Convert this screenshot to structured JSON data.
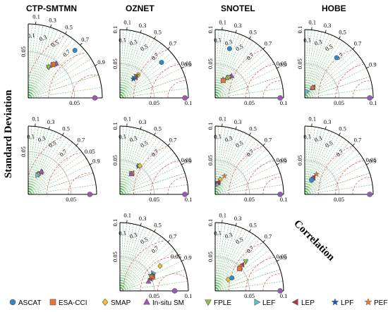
{
  "labels": {
    "col_titles": [
      "CTP-SMTMN",
      "OZNET",
      "SNOTEL",
      "HOBE"
    ],
    "y_axis": "Standard Deviation",
    "correlation": "Correlation"
  },
  "colors": {
    "ref_point": "#9b59b6",
    "grid_green": "#4caf50",
    "arc_red": "#d9534f",
    "std_grey": "#9e9e9e"
  },
  "legend": [
    {
      "name": "ASCAT",
      "marker": "circle",
      "color": "#2a8ccb"
    },
    {
      "name": "ESA-CCI",
      "marker": "square",
      "color": "#e8743b"
    },
    {
      "name": "SMAP",
      "marker": "diamond",
      "color": "#f2c12e"
    },
    {
      "name": "In-situ SM",
      "marker": "triangle-up",
      "color": "#9b59b6"
    },
    {
      "name": "FPLE",
      "marker": "triangle-down",
      "color": "#8bc34a"
    },
    {
      "name": "LEF",
      "marker": "triangle-right",
      "color": "#5bc0de"
    },
    {
      "name": "LEP",
      "marker": "triangle-left",
      "color": "#b5334f"
    },
    {
      "name": "LPF",
      "marker": "star",
      "color": "#1f5fa8"
    },
    {
      "name": "PEF",
      "marker": "star",
      "color": "#e8743b"
    }
  ],
  "chart_data": {
    "type": "scatter",
    "subtype": "taylor-diagram",
    "correlation_ticks": [
      0.1,
      0.3,
      0.5,
      0.7,
      0.9
    ],
    "panels": [
      {
        "id": "r1c1",
        "title": "CTP-SMTMN",
        "std_max": 0.08,
        "std_ticks": [
          0.05
        ],
        "rms_ticks": [],
        "ref_std": 0.072,
        "points": [
          {
            "series": "ASCAT",
            "corr": 0.7,
            "std": 0.072
          },
          {
            "series": "SMAP",
            "corr": 0.55,
            "std": 0.04
          },
          {
            "series": "FPLE",
            "corr": 0.55,
            "std": 0.04
          },
          {
            "series": "LEF",
            "corr": 0.6,
            "std": 0.044
          },
          {
            "series": "ESA-CCI",
            "corr": 0.6,
            "std": 0.045
          },
          {
            "series": "LEP",
            "corr": 0.62,
            "std": 0.047
          },
          {
            "series": "In-situ SM",
            "corr": 0.63,
            "std": 0.048
          },
          {
            "series": "PEF",
            "corr": 0.6,
            "std": 0.046
          }
        ]
      },
      {
        "id": "r1c2",
        "title": "OZNET",
        "std_max": 0.1,
        "std_ticks": [
          0.05,
          0.1
        ],
        "rms_ticks": [
          0.05
        ],
        "ref_std": 0.095,
        "points": [
          {
            "series": "ASCAT",
            "corr": 0.76,
            "std": 0.08
          },
          {
            "series": "SMAP",
            "corr": 0.62,
            "std": 0.043
          },
          {
            "series": "FPLE",
            "corr": 0.6,
            "std": 0.04
          },
          {
            "series": "LEP",
            "corr": 0.6,
            "std": 0.038
          },
          {
            "series": "In-situ SM",
            "corr": 0.6,
            "std": 0.037
          },
          {
            "series": "LEF",
            "corr": 0.58,
            "std": 0.035
          },
          {
            "series": "LPF",
            "corr": 0.58,
            "std": 0.034
          }
        ]
      },
      {
        "id": "r1c3",
        "title": "SNOTEL",
        "std_max": 0.1,
        "std_ticks": [
          0.05,
          0.1
        ],
        "rms_ticks": [
          0.05
        ],
        "ref_std": 0.095,
        "points": [
          {
            "series": "ASCAT",
            "corr": 0.28,
            "std": 0.075
          },
          {
            "series": "SMAP",
            "corr": 0.52,
            "std": 0.035
          },
          {
            "series": "In-situ SM",
            "corr": 0.6,
            "std": 0.04
          },
          {
            "series": "LEP",
            "corr": 0.55,
            "std": 0.037
          },
          {
            "series": "FPLE",
            "corr": 0.55,
            "std": 0.036
          },
          {
            "series": "LEF",
            "corr": 0.45,
            "std": 0.03
          },
          {
            "series": "ESA-CCI",
            "corr": 0.42,
            "std": 0.028
          }
        ]
      },
      {
        "id": "r1c4",
        "title": "HOBE",
        "std_max": 0.1,
        "std_ticks": [
          0.05,
          0.1
        ],
        "rms_ticks": [],
        "ref_std": 0.095,
        "points": [
          {
            "series": "ASCAT",
            "corr": 0.62,
            "std": 0.075
          },
          {
            "series": "LEP",
            "corr": 0.62,
            "std": 0.02
          },
          {
            "series": "In-situ SM",
            "corr": 0.6,
            "std": 0.018
          },
          {
            "series": "PEF",
            "corr": 0.62,
            "std": 0.019
          },
          {
            "series": "LEF",
            "corr": 0.3,
            "std": 0.01
          }
        ]
      },
      {
        "id": "r2c1",
        "title": "",
        "std_max": 0.08,
        "std_ticks": [
          0.05
        ],
        "rms_ticks": [
          0.05
        ],
        "ref_std": 0.072,
        "points": [
          {
            "series": "ASCAT",
            "corr": 0.45,
            "std": 0.027
          },
          {
            "series": "SMAP",
            "corr": 0.46,
            "std": 0.026
          },
          {
            "series": "LEP",
            "corr": 0.5,
            "std": 0.03
          },
          {
            "series": "In-situ SM",
            "corr": 0.5,
            "std": 0.031
          },
          {
            "series": "LEF",
            "corr": 0.44,
            "std": 0.025
          }
        ]
      },
      {
        "id": "r2c2",
        "title": "",
        "std_max": 0.1,
        "std_ticks": [
          0.05,
          0.1
        ],
        "rms_ticks": [
          0.05
        ],
        "ref_std": 0.095,
        "points": [
          {
            "series": "LEF",
            "corr": 0.55,
            "std": 0.05
          },
          {
            "series": "LPF",
            "corr": 0.55,
            "std": 0.049
          },
          {
            "series": "SMAP",
            "corr": 0.57,
            "std": 0.051
          },
          {
            "series": "LEP",
            "corr": 0.5,
            "std": 0.036
          },
          {
            "series": "ESA-CCI",
            "corr": 0.49,
            "std": 0.035
          },
          {
            "series": "In-situ SM",
            "corr": 0.49,
            "std": 0.034
          }
        ]
      },
      {
        "id": "r2c3",
        "title": "",
        "std_max": 0.1,
        "std_ticks": [
          0.05,
          0.1
        ],
        "rms_ticks": [
          0.05
        ],
        "ref_std": 0.095,
        "points": [
          {
            "series": "PEF",
            "corr": 0.45,
            "std": 0.03
          },
          {
            "series": "SMAP",
            "corr": 0.32,
            "std": 0.023
          },
          {
            "series": "ASCAT",
            "corr": 0.25,
            "std": 0.017
          },
          {
            "series": "LEF",
            "corr": 0.24,
            "std": 0.016
          },
          {
            "series": "LEP",
            "corr": 0.25,
            "std": 0.018
          }
        ]
      },
      {
        "id": "r2c4",
        "title": "",
        "std_max": 0.1,
        "std_ticks": [
          0.05
        ],
        "rms_ticks": [
          0.05
        ],
        "ref_std": 0.095,
        "points": [
          {
            "series": "PEF",
            "corr": 0.5,
            "std": 0.034
          },
          {
            "series": "LEP",
            "corr": 0.45,
            "std": 0.028
          },
          {
            "series": "In-situ SM",
            "corr": 0.45,
            "std": 0.026
          },
          {
            "series": "LPF",
            "corr": 0.43,
            "std": 0.024
          },
          {
            "series": "ASCAT",
            "corr": 0.43,
            "std": 0.023
          }
        ]
      },
      {
        "id": "r3c2",
        "title": "",
        "std_max": 0.1,
        "std_ticks": [
          0.05,
          0.1
        ],
        "rms_ticks": [
          0.05
        ],
        "ref_std": 0.08,
        "points": [
          {
            "series": "SMAP",
            "corr": 0.85,
            "std": 0.069
          },
          {
            "series": "In-situ SM",
            "corr": 0.95,
            "std": 0.044
          },
          {
            "series": "FPLE",
            "corr": 0.9,
            "std": 0.05
          },
          {
            "series": "LEF",
            "corr": 0.88,
            "std": 0.055
          },
          {
            "series": "ESA-CCI",
            "corr": 0.92,
            "std": 0.052
          },
          {
            "series": "LEP",
            "corr": 0.93,
            "std": 0.048
          },
          {
            "series": "LPF",
            "corr": 0.9,
            "std": 0.053
          },
          {
            "series": "PEF",
            "corr": 0.91,
            "std": 0.051
          }
        ]
      },
      {
        "id": "r3c3",
        "title": "",
        "std_max": 0.1,
        "std_ticks": [
          0.05,
          0.1
        ],
        "rms_ticks": [
          0.05
        ],
        "ref_std": 0.095,
        "points": [
          {
            "series": "SMAP",
            "corr": 0.75,
            "std": 0.025
          },
          {
            "series": "FPLE",
            "corr": 0.72,
            "std": 0.062
          },
          {
            "series": "LEP",
            "corr": 0.72,
            "std": 0.055
          },
          {
            "series": "In-situ SM",
            "corr": 0.73,
            "std": 0.05
          },
          {
            "series": "PEF",
            "corr": 0.72,
            "std": 0.052
          },
          {
            "series": "ESA-CCI",
            "corr": 0.74,
            "std": 0.048
          },
          {
            "series": "ASCAT",
            "corr": 0.79,
            "std": 0.031
          }
        ]
      }
    ]
  }
}
